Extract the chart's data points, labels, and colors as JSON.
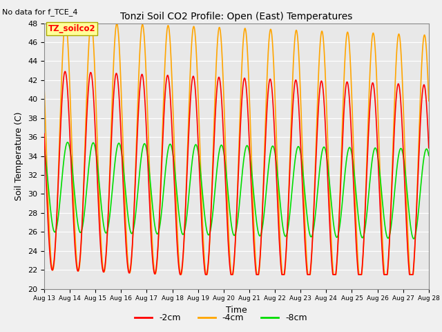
{
  "title": "Tonzi Soil CO2 Profile: Open (East) Temperatures",
  "xlabel": "Time",
  "ylabel": "Soil Temperature (C)",
  "ylim": [
    20,
    48
  ],
  "no_data_text": "No data for f_TCE_4",
  "legend_box_text": "TZ_soilco2",
  "series": {
    "-2cm": {
      "color": "#FF0000",
      "linewidth": 1.2
    },
    "-4cm": {
      "color": "#FFA500",
      "linewidth": 1.2
    },
    "-8cm": {
      "color": "#00DD00",
      "linewidth": 1.2
    }
  },
  "yticks": [
    20,
    22,
    24,
    26,
    28,
    30,
    32,
    34,
    36,
    38,
    40,
    42,
    44,
    46,
    48
  ],
  "xtick_labels": [
    "Aug 13",
    "Aug 14",
    "Aug 15",
    "Aug 16",
    "Aug 17",
    "Aug 18",
    "Aug 19",
    "Aug 20",
    "Aug 21",
    "Aug 22",
    "Aug 23",
    "Aug 24",
    "Aug 25",
    "Aug 26",
    "Aug 27",
    "Aug 28"
  ],
  "fig_bg": "#F0F0F0",
  "plot_bg": "#E8E8E8"
}
